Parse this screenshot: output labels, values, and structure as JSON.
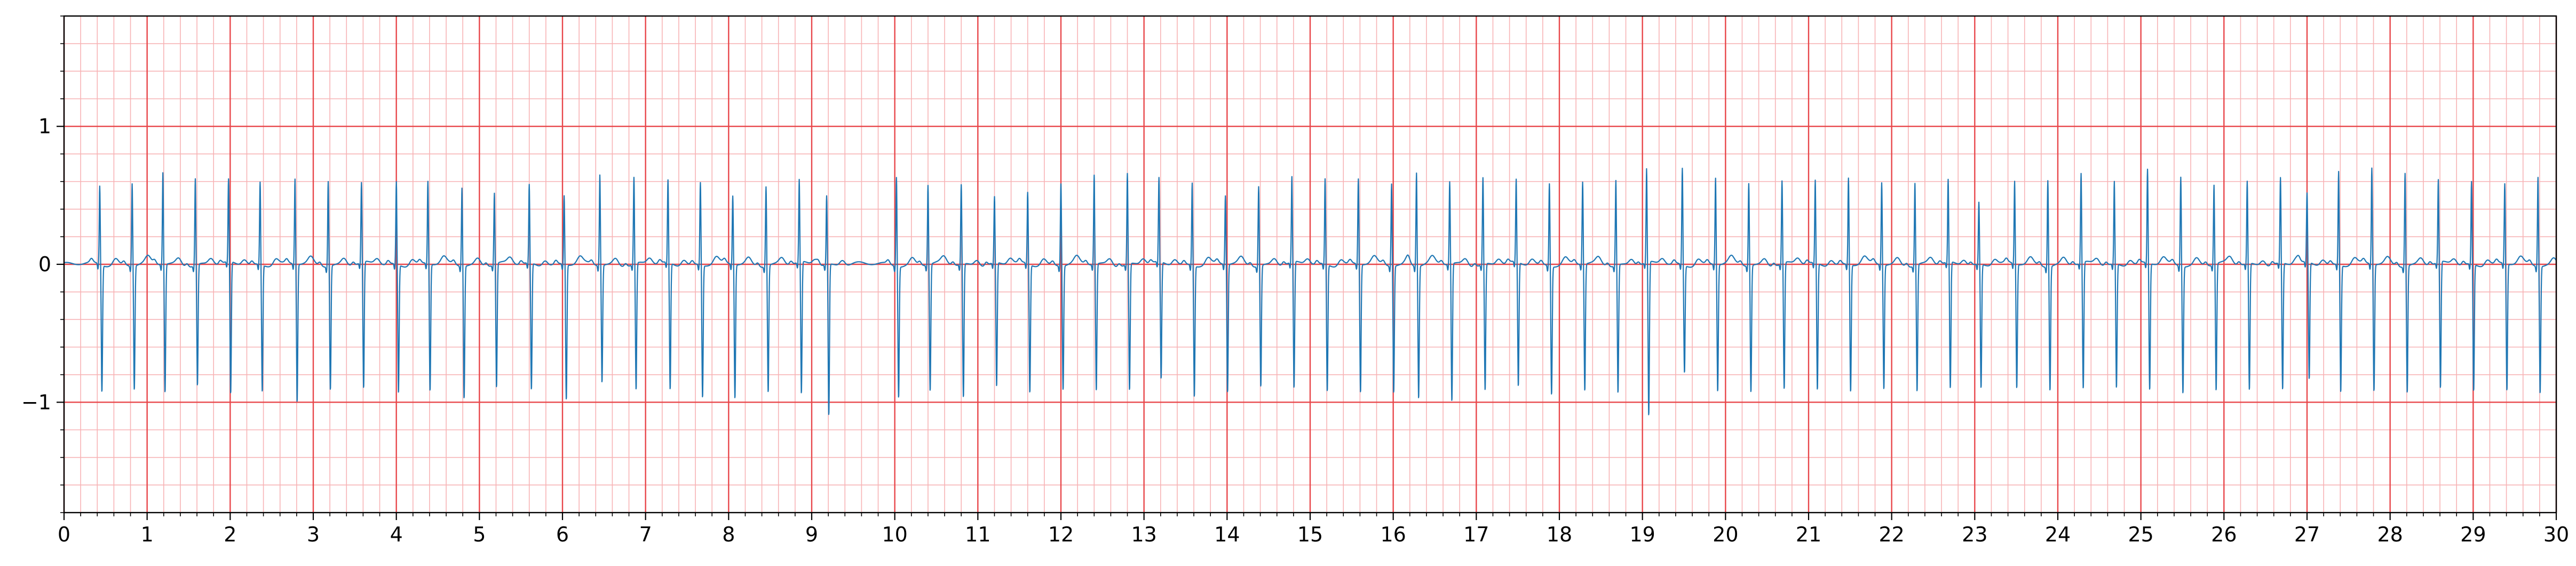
{
  "chart_data": {
    "type": "line",
    "title": "",
    "xlabel": "",
    "ylabel": "",
    "xlim": [
      0,
      30
    ],
    "ylim": [
      -1.8,
      1.8
    ],
    "x_ticks": [
      0,
      1,
      2,
      3,
      4,
      5,
      6,
      7,
      8,
      9,
      10,
      11,
      12,
      13,
      14,
      15,
      16,
      17,
      18,
      19,
      20,
      21,
      22,
      23,
      24,
      25,
      26,
      27,
      28,
      29,
      30
    ],
    "x_tick_labels": [
      "0",
      "1",
      "2",
      "3",
      "4",
      "5",
      "6",
      "7",
      "8",
      "9",
      "10",
      "11",
      "12",
      "13",
      "14",
      "15",
      "16",
      "17",
      "18",
      "19",
      "20",
      "21",
      "22",
      "23",
      "24",
      "25",
      "26",
      "27",
      "28",
      "29",
      "30"
    ],
    "y_ticks": [
      -1,
      0,
      1
    ],
    "y_tick_labels": [
      "−1",
      "0",
      "1"
    ],
    "grid": {
      "major_x_step": 1,
      "minor_x_step": 0.2,
      "major_y_step": 1,
      "minor_y_step": 0.2,
      "major_color": "#e8464a",
      "minor_color": "#f7b3b5"
    },
    "legend": "none",
    "series": [
      {
        "color": "#1f77b4",
        "beats": [
          [
            0.43,
            0.57,
            -0.92
          ],
          [
            0.82,
            0.6,
            -0.9
          ],
          [
            1.19,
            0.67,
            -0.93
          ],
          [
            1.58,
            0.63,
            -0.88
          ],
          [
            1.98,
            0.6,
            -0.96
          ],
          [
            2.36,
            0.6,
            -0.92
          ],
          [
            2.78,
            0.62,
            -1.0
          ],
          [
            3.18,
            0.62,
            -0.9
          ],
          [
            3.58,
            0.58,
            -0.92
          ],
          [
            4.0,
            0.6,
            -0.93
          ],
          [
            4.38,
            0.6,
            -0.92
          ],
          [
            4.79,
            0.57,
            -0.96
          ],
          [
            5.18,
            0.52,
            -0.9
          ],
          [
            5.6,
            0.57,
            -0.92
          ],
          [
            6.02,
            0.5,
            -0.98
          ],
          [
            6.45,
            0.66,
            -0.85
          ],
          [
            6.86,
            0.63,
            -0.92
          ],
          [
            7.27,
            0.6,
            -0.92
          ],
          [
            7.66,
            0.6,
            -0.96
          ],
          [
            8.05,
            0.5,
            -0.97
          ],
          [
            8.45,
            0.58,
            -0.92
          ],
          [
            8.85,
            0.6,
            -0.96
          ],
          [
            9.18,
            0.5,
            -1.1
          ],
          [
            10.02,
            0.65,
            -0.95
          ],
          [
            10.4,
            0.58,
            -0.92
          ],
          [
            10.8,
            0.58,
            -0.97
          ],
          [
            11.2,
            0.48,
            -0.9
          ],
          [
            11.6,
            0.52,
            -0.93
          ],
          [
            12.0,
            0.6,
            -0.9
          ],
          [
            12.4,
            0.65,
            -0.92
          ],
          [
            12.8,
            0.66,
            -0.92
          ],
          [
            13.18,
            0.61,
            -0.85
          ],
          [
            13.58,
            0.6,
            -0.95
          ],
          [
            13.98,
            0.5,
            -0.93
          ],
          [
            14.38,
            0.58,
            -0.88
          ],
          [
            14.78,
            0.62,
            -0.92
          ],
          [
            15.18,
            0.62,
            -0.92
          ],
          [
            15.58,
            0.62,
            -0.93
          ],
          [
            15.98,
            0.6,
            -0.92
          ],
          [
            16.28,
            0.68,
            -0.96
          ],
          [
            16.68,
            0.6,
            -1.0
          ],
          [
            17.08,
            0.63,
            -0.92
          ],
          [
            17.48,
            0.6,
            -0.9
          ],
          [
            17.88,
            0.6,
            -0.93
          ],
          [
            18.28,
            0.6,
            -0.92
          ],
          [
            18.68,
            0.62,
            -0.93
          ],
          [
            19.05,
            0.68,
            -1.12
          ],
          [
            19.48,
            0.7,
            -0.78
          ],
          [
            19.88,
            0.63,
            -0.92
          ],
          [
            20.28,
            0.6,
            -0.92
          ],
          [
            20.68,
            0.6,
            -0.92
          ],
          [
            21.08,
            0.6,
            -0.92
          ],
          [
            21.48,
            0.63,
            -0.92
          ],
          [
            21.88,
            0.6,
            -0.9
          ],
          [
            22.28,
            0.6,
            -0.92
          ],
          [
            22.68,
            0.6,
            -0.92
          ],
          [
            23.05,
            0.45,
            -0.9
          ],
          [
            23.48,
            0.6,
            -0.9
          ],
          [
            23.88,
            0.63,
            -0.9
          ],
          [
            24.28,
            0.65,
            -0.92
          ],
          [
            24.68,
            0.6,
            -0.9
          ],
          [
            25.08,
            0.68,
            -0.92
          ],
          [
            25.48,
            0.65,
            -0.92
          ],
          [
            25.88,
            0.58,
            -0.92
          ],
          [
            26.28,
            0.6,
            -0.92
          ],
          [
            26.68,
            0.62,
            -0.92
          ],
          [
            27.0,
            0.5,
            -0.85
          ],
          [
            27.38,
            0.68,
            -0.92
          ],
          [
            27.78,
            0.7,
            -0.92
          ],
          [
            28.18,
            0.68,
            -0.92
          ],
          [
            28.58,
            0.6,
            -0.92
          ],
          [
            28.98,
            0.6,
            -0.92
          ],
          [
            29.38,
            0.58,
            -0.92
          ],
          [
            29.78,
            0.65,
            -0.92
          ]
        ]
      }
    ]
  }
}
